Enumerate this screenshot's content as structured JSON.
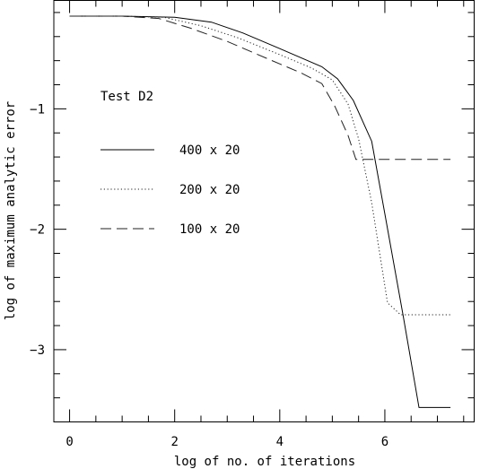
{
  "chart_data": {
    "type": "line",
    "title": "",
    "xlabel": "log of no. of iterations",
    "ylabel": "log of maximum analytic error",
    "xlim": [
      -0.3,
      7.7
    ],
    "ylim": [
      -3.6,
      -0.1
    ],
    "xticks": [
      0,
      2,
      4,
      6
    ],
    "xtick_labels": [
      "0",
      "2",
      "4",
      "6"
    ],
    "yticks": [
      -1,
      -2,
      -3
    ],
    "ytick_labels": [
      "−1",
      "−2",
      "−3"
    ],
    "legend_title": "Test D2",
    "legend_position": "left-center",
    "grid": false,
    "series": [
      {
        "name": "400 x 20",
        "dash": "solid",
        "x": [
          0,
          1.0,
          2.0,
          2.7,
          3.3,
          4.0,
          4.8,
          5.1,
          5.4,
          5.75,
          6.0,
          6.35,
          6.65,
          7.25
        ],
        "y": [
          -0.23,
          -0.23,
          -0.24,
          -0.28,
          -0.37,
          -0.5,
          -0.65,
          -0.75,
          -0.93,
          -1.27,
          -1.87,
          -2.72,
          -3.48,
          -3.48
        ]
      },
      {
        "name": "200 x 20",
        "dash": "dotted",
        "x": [
          0,
          1.0,
          1.8,
          2.5,
          3.2,
          4.0,
          4.6,
          5.0,
          5.3,
          5.5,
          5.75,
          6.05,
          6.3,
          7.25
        ],
        "y": [
          -0.23,
          -0.23,
          -0.24,
          -0.31,
          -0.41,
          -0.55,
          -0.66,
          -0.76,
          -0.96,
          -1.25,
          -1.78,
          -2.61,
          -2.71,
          -2.71
        ]
      },
      {
        "name": "100 x 20",
        "dash": "dashed",
        "x": [
          0,
          1.0,
          1.7,
          2.3,
          3.0,
          3.8,
          4.4,
          4.8,
          5.05,
          5.3,
          5.45,
          7.25
        ],
        "y": [
          -0.23,
          -0.23,
          -0.25,
          -0.33,
          -0.44,
          -0.59,
          -0.7,
          -0.79,
          -0.98,
          -1.22,
          -1.42,
          -1.42
        ]
      }
    ]
  }
}
